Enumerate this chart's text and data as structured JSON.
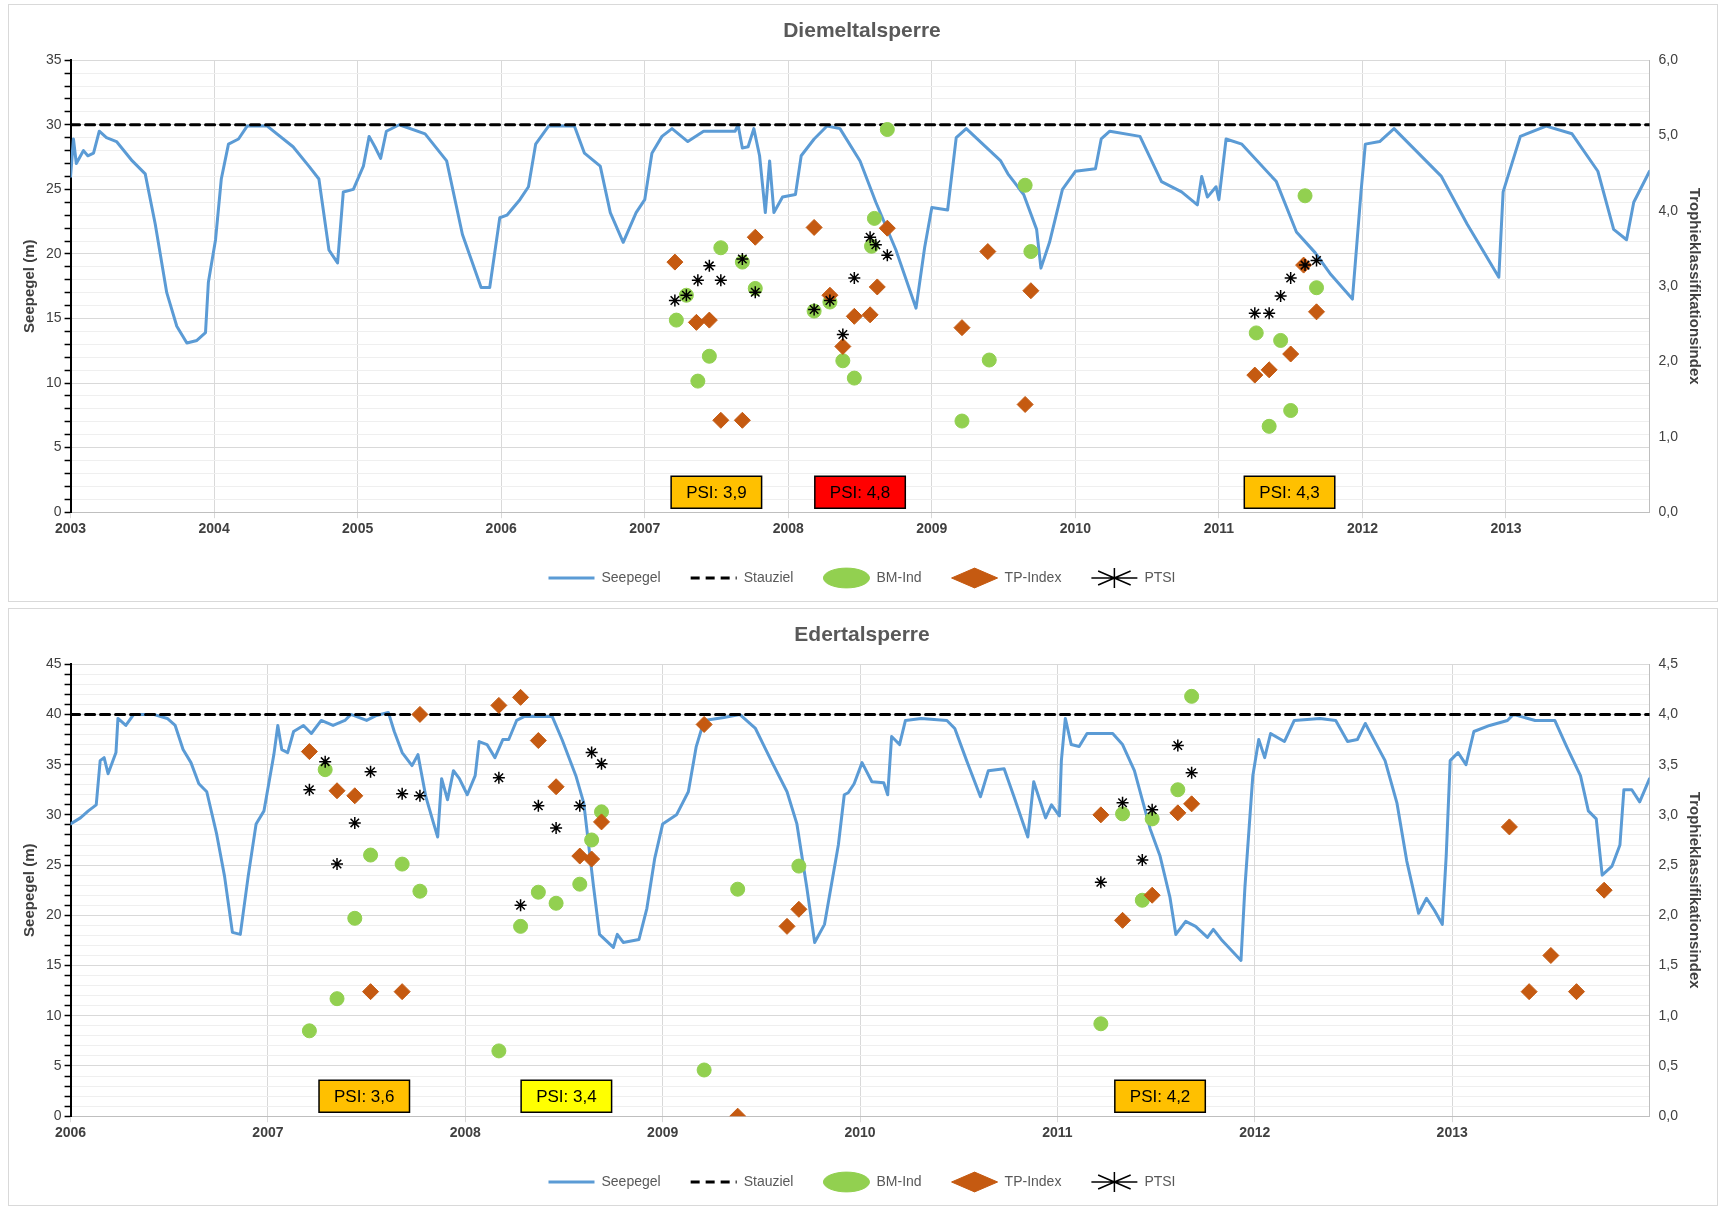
{
  "chart_data": [
    {
      "type": "line",
      "title": "Diemeltalsperre",
      "ylabel": "Seepegel (m)",
      "y2label": "Trophieklassifikationsindex",
      "xlim": [
        2003,
        2014
      ],
      "xticks": [
        2003,
        2004,
        2005,
        2006,
        2007,
        2008,
        2009,
        2010,
        2011,
        2012,
        2013
      ],
      "ylim": [
        0,
        35
      ],
      "yticks": [
        0,
        {
          "value": 1,
          "label": null
        },
        {
          "value": 2,
          "label": null
        },
        {
          "value": 3,
          "label": null
        },
        {
          "value": 4,
          "label": null
        },
        5,
        {
          "value": 6,
          "label": null
        },
        {
          "value": 7,
          "label": null
        },
        {
          "value": 8,
          "label": null
        },
        {
          "value": 9,
          "label": null
        },
        10,
        {
          "value": 11,
          "label": null
        },
        {
          "value": 12,
          "label": null
        },
        {
          "value": 13,
          "label": null
        },
        {
          "value": 14,
          "label": null
        },
        15,
        {
          "value": 16,
          "label": null
        },
        {
          "value": 17,
          "label": null
        },
        {
          "value": 18,
          "label": null
        },
        {
          "value": 19,
          "label": null
        },
        20,
        {
          "value": 21,
          "label": null
        },
        {
          "value": 22,
          "label": null
        },
        {
          "value": 23,
          "label": null
        },
        {
          "value": 24,
          "label": null
        },
        25,
        {
          "value": 26,
          "label": null
        },
        {
          "value": 27,
          "label": null
        },
        {
          "value": 28,
          "label": null
        },
        {
          "value": 29,
          "label": null
        },
        30,
        {
          "value": 31,
          "label": null
        },
        {
          "value": 32,
          "label": null
        },
        {
          "value": 33,
          "label": null
        },
        {
          "value": 34,
          "label": null
        },
        35
      ],
      "y2lim": [
        0,
        6
      ],
      "y2ticks": [
        {
          "value": 0,
          "label": "0,0"
        },
        {
          "value": 1,
          "label": "1,0"
        },
        {
          "value": 2,
          "label": "2,0"
        },
        {
          "value": 3,
          "label": "3,0"
        },
        {
          "value": 4,
          "label": "4,0"
        },
        {
          "value": 5,
          "label": "5,0"
        },
        {
          "value": 6,
          "label": "6,0"
        }
      ],
      "grid": true,
      "legend": "bottom",
      "series": [
        {
          "name": "Seepegel",
          "type": "line",
          "color": "#5b9bd5",
          "marker": "none",
          "line_style": "solid",
          "x": [
            2003.0,
            2003.02,
            2003.04,
            2003.09,
            2003.12,
            2003.16,
            2003.2,
            2003.25,
            2003.32,
            2003.43,
            2003.52,
            2003.59,
            2003.67,
            2003.74,
            2003.81,
            2003.88,
            2003.94,
            2003.96,
            2004.01,
            2004.05,
            2004.1,
            2004.17,
            2004.23,
            2004.37,
            2004.55,
            2004.66,
            2004.73,
            2004.8,
            2004.86,
            2004.9,
            2004.97,
            2005.04,
            2005.08,
            2005.12,
            2005.16,
            2005.2,
            2005.29,
            2005.47,
            2005.62,
            2005.73,
            2005.86,
            2005.92,
            2005.99,
            2006.04,
            2006.13,
            2006.19,
            2006.24,
            2006.33,
            2006.51,
            2006.58,
            2006.69,
            2006.76,
            2006.85,
            2006.94,
            2007.0,
            2007.05,
            2007.12,
            2007.19,
            2007.3,
            2007.41,
            2007.63,
            2007.65,
            2007.68,
            2007.72,
            2007.76,
            2007.8,
            2007.84,
            2007.87,
            2007.9,
            2007.96,
            2008.05,
            2008.09,
            2008.18,
            2008.27,
            2008.36,
            2008.5,
            2008.61,
            2008.75,
            2008.89,
            2008.95,
            2009.0,
            2009.11,
            2009.17,
            2009.24,
            2009.48,
            2009.53,
            2009.64,
            2009.73,
            2009.76,
            2009.82,
            2009.91,
            2010.0,
            2010.14,
            2010.18,
            2010.24,
            2010.45,
            2010.6,
            2010.74,
            2010.85,
            2010.88,
            2010.92,
            2010.98,
            2011.0,
            2011.05,
            2011.16,
            2011.4,
            2011.54,
            2011.67,
            2011.78,
            2011.93,
            2011.99,
            2012.02,
            2012.12,
            2012.22,
            2012.55,
            2012.73,
            2012.95,
            2012.98,
            2013.1,
            2013.28,
            2013.46,
            2013.64,
            2013.75,
            2013.84,
            2013.89,
            2014.0
          ],
          "values": [
            26,
            28.9,
            27,
            28,
            27.6,
            27.8,
            29.5,
            29,
            28.7,
            27.2,
            26.2,
            22.3,
            17,
            14.4,
            13.1,
            13.3,
            13.9,
            17.8,
            21.1,
            25.8,
            28.5,
            28.9,
            29.9,
            29.9,
            28.3,
            26.8,
            25.8,
            20.3,
            19.3,
            24.8,
            25,
            26.8,
            29.1,
            28.3,
            27.4,
            29.5,
            30,
            29.3,
            27.2,
            21.5,
            17.4,
            17.4,
            22.8,
            23,
            24.2,
            25.2,
            28.5,
            29.9,
            29.9,
            27.8,
            26.8,
            23.2,
            20.9,
            23.2,
            24.2,
            27.8,
            29.1,
            29.7,
            28.7,
            29.5,
            29.5,
            30,
            28.2,
            28.3,
            29.7,
            27.6,
            23.2,
            27.2,
            23.2,
            24.4,
            24.6,
            27.6,
            28.9,
            29.9,
            29.7,
            27.2,
            24,
            20.3,
            15.8,
            20.5,
            23.6,
            23.4,
            29,
            29.7,
            27.2,
            26.2,
            24.6,
            21.9,
            18.9,
            20.9,
            25,
            26.4,
            26.6,
            28.9,
            29.5,
            29.1,
            25.6,
            24.8,
            23.8,
            26,
            24.4,
            25.2,
            24.2,
            28.9,
            28.5,
            25.6,
            21.7,
            20.1,
            18.4,
            16.5,
            24.8,
            28.5,
            28.7,
            29.7,
            26,
            22.3,
            18.2,
            24.8,
            29.1,
            29.9,
            29.3,
            26.4,
            21.9,
            21.1,
            24,
            26.4
          ]
        },
        {
          "name": "Stauziel",
          "type": "line",
          "color": "#000000",
          "marker": "none",
          "line_style": "dashed",
          "x": [
            2003,
            2014
          ],
          "values": [
            30,
            30
          ]
        },
        {
          "name": "BM-Ind",
          "type": "scatter",
          "axis": "y2",
          "color": "#92d050",
          "marker": "circle",
          "x": [
            2007.22,
            2007.29,
            2007.37,
            2007.45,
            2007.53,
            2007.68,
            2007.77,
            2008.18,
            2008.29,
            2008.38,
            2008.46,
            2008.58,
            2008.6,
            2008.69,
            2009.21,
            2009.4,
            2009.65,
            2009.69,
            2011.26,
            2011.35,
            2011.43,
            2011.5,
            2011.6,
            2011.68
          ],
          "values": [
            2.55,
            2.88,
            1.74,
            2.07,
            3.51,
            3.32,
            2.97,
            2.67,
            2.79,
            2.01,
            1.78,
            3.53,
            3.9,
            5.08,
            1.21,
            2.02,
            4.34,
            3.46,
            2.38,
            1.14,
            2.28,
            1.35,
            4.2,
            2.98
          ]
        },
        {
          "name": "TP-Index",
          "type": "scatter",
          "axis": "y2",
          "color": "#c55a11",
          "marker": "diamond",
          "x": [
            2007.21,
            2007.36,
            2007.45,
            2007.53,
            2007.68,
            2007.77,
            2008.18,
            2008.29,
            2008.38,
            2008.46,
            2008.57,
            2008.62,
            2008.69,
            2009.21,
            2009.39,
            2009.65,
            2009.69,
            2011.25,
            2011.35,
            2011.5,
            2011.59,
            2011.68
          ],
          "values": [
            3.32,
            2.52,
            2.55,
            1.22,
            1.22,
            3.65,
            3.78,
            2.88,
            2.2,
            2.6,
            2.62,
            2.99,
            3.77,
            2.45,
            3.46,
            1.43,
            2.94,
            1.82,
            1.89,
            2.1,
            3.28,
            2.66
          ]
        },
        {
          "name": "PTSI",
          "type": "scatter",
          "axis": "y2",
          "color": "#000000",
          "marker": "cross",
          "x": [
            2007.21,
            2007.29,
            2007.37,
            2007.45,
            2007.53,
            2007.68,
            2007.77,
            2008.18,
            2008.29,
            2008.38,
            2008.46,
            2008.57,
            2008.61,
            2008.69,
            2011.25,
            2011.35,
            2011.43,
            2011.5,
            2011.6,
            2011.68
          ],
          "values": [
            2.81,
            2.88,
            3.08,
            3.27,
            3.08,
            3.36,
            2.92,
            2.69,
            2.81,
            2.36,
            3.11,
            3.65,
            3.55,
            3.41,
            2.64,
            2.64,
            2.87,
            3.11,
            3.28,
            3.34
          ]
        }
      ],
      "annotations": [
        "PSI: 3,9",
        "PSI: 4,8",
        "PSI: 4,3"
      ]
    },
    {
      "type": "line",
      "title": "Edertalsperre",
      "ylabel": "Seepegel (m)",
      "y2label": "Trophieklassifikationsindex",
      "xlim": [
        2006,
        2014
      ],
      "xticks": [
        2006,
        2007,
        2008,
        2009,
        2010,
        2011,
        2012,
        2013
      ],
      "ylim": [
        0,
        45
      ],
      "yticks": [
        0,
        {
          "value": 1,
          "label": null
        },
        {
          "value": 2,
          "label": null
        },
        {
          "value": 3,
          "label": null
        },
        {
          "value": 4,
          "label": null
        },
        5,
        {
          "value": 6,
          "label": null
        },
        {
          "value": 7,
          "label": null
        },
        {
          "value": 8,
          "label": null
        },
        {
          "value": 9,
          "label": null
        },
        10,
        {
          "value": 11,
          "label": null
        },
        {
          "value": 12,
          "label": null
        },
        {
          "value": 13,
          "label": null
        },
        {
          "value": 14,
          "label": null
        },
        15,
        {
          "value": 16,
          "label": null
        },
        {
          "value": 17,
          "label": null
        },
        {
          "value": 18,
          "label": null
        },
        {
          "value": 19,
          "label": null
        },
        20,
        {
          "value": 21,
          "label": null
        },
        {
          "value": 22,
          "label": null
        },
        {
          "value": 23,
          "label": null
        },
        {
          "value": 24,
          "label": null
        },
        25,
        {
          "value": 26,
          "label": null
        },
        {
          "value": 27,
          "label": null
        },
        {
          "value": 28,
          "label": null
        },
        {
          "value": 29,
          "label": null
        },
        30,
        {
          "value": 31,
          "label": null
        },
        {
          "value": 32,
          "label": null
        },
        {
          "value": 33,
          "label": null
        },
        {
          "value": 34,
          "label": null
        },
        35,
        {
          "value": 36,
          "label": null
        },
        {
          "value": 37,
          "label": null
        },
        {
          "value": 38,
          "label": null
        },
        {
          "value": 39,
          "label": null
        },
        40,
        {
          "value": 41,
          "label": null
        },
        {
          "value": 42,
          "label": null
        },
        {
          "value": 43,
          "label": null
        },
        {
          "value": 44,
          "label": null
        },
        45
      ],
      "y2lim": [
        0,
        4.5
      ],
      "y2ticks": [
        {
          "value": 0,
          "label": "0,0"
        },
        {
          "value": 0.5,
          "label": "0,5"
        },
        {
          "value": 1,
          "label": "1,0"
        },
        {
          "value": 1.5,
          "label": "1,5"
        },
        {
          "value": 2,
          "label": "2,0"
        },
        {
          "value": 2.5,
          "label": "2,5"
        },
        {
          "value": 3,
          "label": "3,0"
        },
        {
          "value": 3.5,
          "label": "3,5"
        },
        {
          "value": 4,
          "label": "4,0"
        },
        {
          "value": 4.5,
          "label": "4,5"
        }
      ],
      "grid": true,
      "legend": "bottom",
      "series": [
        {
          "name": "Seepegel",
          "type": "line",
          "color": "#5b9bd5",
          "marker": "none",
          "line_style": "solid",
          "x": [
            2006.0,
            2006.05,
            2006.09,
            2006.13,
            2006.15,
            2006.17,
            2006.19,
            2006.23,
            2006.24,
            2006.28,
            2006.32,
            2006.42,
            2006.49,
            2006.53,
            2006.57,
            2006.61,
            2006.65,
            2006.69,
            2006.74,
            2006.78,
            2006.82,
            2006.86,
            2006.9,
            2006.94,
            2006.98,
            2007.03,
            2007.05,
            2007.07,
            2007.1,
            2007.13,
            2007.18,
            2007.22,
            2007.27,
            2007.33,
            2007.39,
            2007.42,
            2007.5,
            2007.55,
            2007.61,
            2007.64,
            2007.68,
            2007.73,
            2007.76,
            2007.8,
            2007.84,
            2007.86,
            2007.88,
            2007.91,
            2007.94,
            2007.97,
            2008.01,
            2008.05,
            2008.07,
            2008.11,
            2008.15,
            2008.19,
            2008.22,
            2008.26,
            2008.3,
            2008.44,
            2008.49,
            2008.56,
            2008.6,
            2008.65,
            2008.68,
            2008.75,
            2008.77,
            2008.8,
            2008.88,
            2008.92,
            2008.96,
            2009.0,
            2009.07,
            2009.13,
            2009.17,
            2009.21,
            2009.31,
            2009.39,
            2009.47,
            2009.55,
            2009.63,
            2009.68,
            2009.73,
            2009.77,
            2009.82,
            2009.89,
            2009.92,
            2009.94,
            2009.97,
            2010.01,
            2010.06,
            2010.12,
            2010.14,
            2010.16,
            2010.2,
            2010.23,
            2010.31,
            2010.44,
            2010.48,
            2010.54,
            2010.61,
            2010.65,
            2010.73,
            2010.78,
            2010.85,
            2010.88,
            2010.94,
            2010.97,
            2011.01,
            2011.02,
            2011.04,
            2011.07,
            2011.11,
            2011.15,
            2011.28,
            2011.33,
            2011.39,
            2011.47,
            2011.52,
            2011.57,
            2011.6,
            2011.65,
            2011.7,
            2011.76,
            2011.79,
            2011.83,
            2011.93,
            2011.95,
            2011.99,
            2012.02,
            2012.05,
            2012.08,
            2012.15,
            2012.2,
            2012.33,
            2012.41,
            2012.47,
            2012.52,
            2012.56,
            2012.66,
            2012.72,
            2012.77,
            2012.83,
            2012.87,
            2012.91,
            2012.95,
            2012.97,
            2012.99,
            2013.03,
            2013.07,
            2013.11,
            2013.19,
            2013.28,
            2013.31,
            2013.42,
            2013.52,
            2013.58,
            2013.65,
            2013.69,
            2013.73,
            2013.76,
            2013.81,
            2013.85,
            2013.87,
            2013.91,
            2013.95,
            2014.0
          ],
          "values": [
            29.1,
            29.7,
            30.4,
            31,
            35.4,
            35.7,
            34.1,
            36.2,
            39.6,
            38.9,
            40,
            40,
            39.6,
            38.9,
            36.5,
            35.2,
            33.1,
            32.3,
            28.1,
            23.9,
            18.3,
            18.1,
            23.9,
            29.1,
            30.4,
            36,
            38.9,
            36.5,
            36.2,
            38.3,
            38.9,
            38.1,
            39.4,
            38.9,
            39.4,
            40,
            39.4,
            39.9,
            40.2,
            38.3,
            36.2,
            34.9,
            36,
            31.8,
            29.1,
            27.8,
            33.6,
            31.5,
            34.4,
            33.6,
            32,
            33.9,
            37.3,
            37,
            35.7,
            37.5,
            37.5,
            39.4,
            39.8,
            39.8,
            37.5,
            33.9,
            31.2,
            22.8,
            18.1,
            16.8,
            18.1,
            17.3,
            17.6,
            20.7,
            25.7,
            29.1,
            30,
            32.3,
            36.8,
            39.4,
            39.7,
            40,
            38.6,
            35.4,
            32.3,
            29.1,
            22.8,
            17.3,
            19.1,
            27,
            32,
            32.2,
            33.1,
            35.2,
            33.3,
            33.2,
            32,
            37.8,
            37,
            39.4,
            39.6,
            39.4,
            38.6,
            35.4,
            31.8,
            34.4,
            34.6,
            31.8,
            27.8,
            33.3,
            29.7,
            31,
            29.9,
            35.4,
            39.6,
            37,
            36.8,
            38.1,
            38.1,
            37,
            34.4,
            28.6,
            25.9,
            21.8,
            18.1,
            19.4,
            18.9,
            17.8,
            18.6,
            17.6,
            15.5,
            22.8,
            33.9,
            37.5,
            35.7,
            38.1,
            37.3,
            39.4,
            39.6,
            39.4,
            37.3,
            37.5,
            39.1,
            35.4,
            31.2,
            25.4,
            20.2,
            21.7,
            20.5,
            19.1,
            26,
            35.4,
            36.2,
            35,
            38.3,
            38.9,
            39.4,
            40,
            39.4,
            39.4,
            36.8,
            33.9,
            30.4,
            29.6,
            24,
            24.9,
            27,
            32.5,
            32.5,
            31.3,
            33.6
          ]
        },
        {
          "name": "Stauziel",
          "type": "line",
          "color": "#000000",
          "marker": "none",
          "line_style": "dashed",
          "x": [
            2006,
            2014
          ],
          "values": [
            40,
            40
          ]
        },
        {
          "name": "BM-Ind",
          "type": "scatter",
          "axis": "y2",
          "color": "#92d050",
          "marker": "circle",
          "x": [
            2007.21,
            2007.29,
            2007.35,
            2007.44,
            2007.52,
            2007.68,
            2007.77,
            2008.17,
            2008.28,
            2008.37,
            2008.46,
            2008.58,
            2008.64,
            2008.69,
            2009.21,
            2009.38,
            2009.69,
            2011.22,
            2011.33,
            2011.43,
            2011.48,
            2011.61,
            2011.68
          ],
          "values": [
            0.85,
            3.45,
            1.17,
            1.97,
            2.6,
            2.51,
            2.24,
            0.65,
            1.89,
            2.23,
            2.12,
            2.31,
            2.75,
            3.03,
            0.46,
            2.26,
            2.49,
            0.92,
            3.01,
            2.15,
            2.96,
            3.25,
            4.18
          ]
        },
        {
          "name": "TP-Index",
          "type": "scatter",
          "axis": "y2",
          "color": "#c55a11",
          "marker": "diamond",
          "x": [
            2007.21,
            2007.35,
            2007.44,
            2007.52,
            2007.68,
            2007.77,
            2008.17,
            2008.28,
            2008.37,
            2008.46,
            2008.58,
            2008.64,
            2008.69,
            2009.21,
            2009.38,
            2009.63,
            2009.69,
            2011.22,
            2011.33,
            2011.48,
            2011.61,
            2011.68,
            2013.29,
            2013.39,
            2013.5,
            2013.63,
            2013.77
          ],
          "values": [
            3.63,
            3.24,
            3.19,
            1.24,
            1.24,
            4.0,
            4.09,
            4.17,
            3.74,
            3.28,
            2.59,
            2.56,
            2.93,
            3.9,
            0.0,
            1.89,
            2.06,
            3.0,
            1.95,
            2.2,
            3.02,
            3.11,
            2.88,
            1.24,
            1.6,
            1.24,
            2.25
          ]
        },
        {
          "name": "PTSI",
          "type": "scatter",
          "axis": "y2",
          "color": "#000000",
          "marker": "cross",
          "x": [
            2007.21,
            2007.29,
            2007.35,
            2007.44,
            2007.52,
            2007.68,
            2007.77,
            2008.17,
            2008.28,
            2008.37,
            2008.46,
            2008.58,
            2008.64,
            2008.69,
            2011.22,
            2011.33,
            2011.43,
            2011.48,
            2011.61,
            2011.68
          ],
          "values": [
            3.25,
            3.53,
            2.51,
            2.92,
            3.43,
            3.21,
            3.19,
            3.37,
            2.1,
            3.09,
            2.87,
            3.09,
            3.62,
            3.51,
            2.33,
            3.12,
            2.55,
            3.05,
            3.69,
            3.42
          ]
        }
      ],
      "annotations": [
        "PSI: 3,6",
        "PSI: 3,4",
        "PSI: 4,2"
      ]
    }
  ]
}
